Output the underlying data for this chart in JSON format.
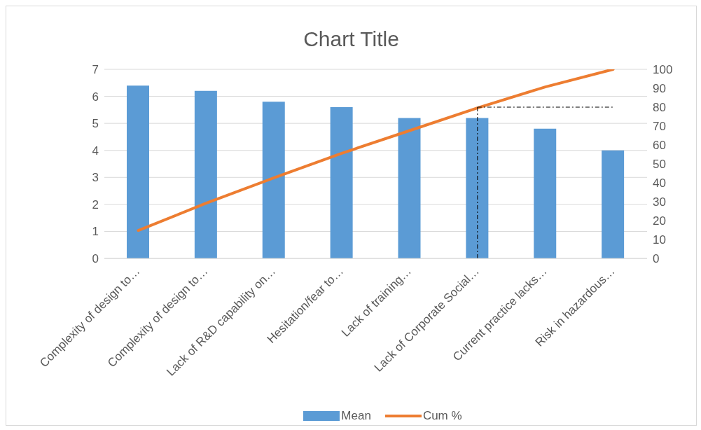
{
  "chart_data": {
    "type": "bar",
    "title": "Chart Title",
    "categories": [
      "Complexity of design to…",
      "Complexity of design to…",
      "Lack of R&D capability on…",
      "Hesitation/fear to…",
      "Lack of training…",
      "Lack of Corporate Social…",
      "Current practice lacks…",
      "Risk in hazardous…"
    ],
    "series": [
      {
        "name": "Mean",
        "color": "#5b9bd5",
        "values": [
          6.4,
          6.2,
          5.8,
          5.6,
          5.2,
          5.2,
          4.8,
          4.0
        ]
      },
      {
        "name": "Cum %",
        "type": "line",
        "axis": "y2",
        "color": "#ed7d31",
        "values": [
          14.8,
          29.2,
          42.6,
          55.6,
          67.6,
          79.6,
          90.7,
          100
        ]
      }
    ],
    "ylim": [
      0,
      7
    ],
    "yticks": [
      0,
      1,
      2,
      3,
      4,
      5,
      6,
      7
    ],
    "y2lim": [
      0,
      100
    ],
    "y2ticks": [
      0,
      10,
      20,
      30,
      40,
      50,
      60,
      70,
      80,
      90,
      100
    ],
    "ref_lines": [
      {
        "axis": "x",
        "value": "Lack of Corporate Social…",
        "line_style": "dashed",
        "color": "#000000"
      },
      {
        "axis": "y2",
        "value": 80,
        "line_style": "dashed",
        "color": "#000000"
      }
    ],
    "grid": "y",
    "legend": "bottom",
    "marker": "none"
  }
}
